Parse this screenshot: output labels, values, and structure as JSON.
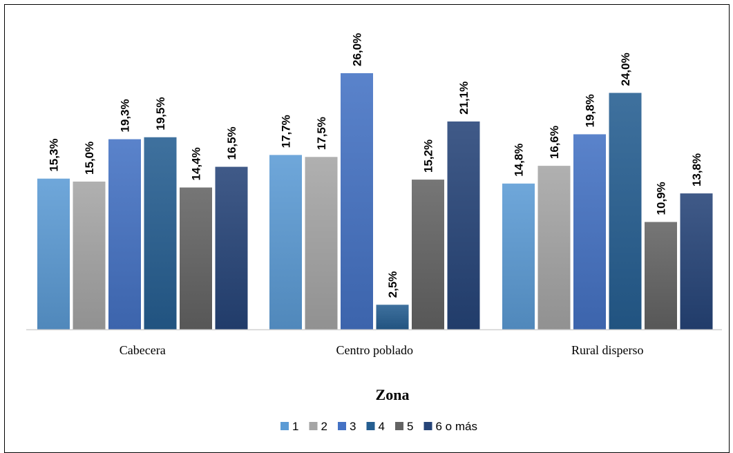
{
  "chart_data": {
    "type": "bar",
    "xlabel": "Zona",
    "categories": [
      "Cabecera",
      "Centro poblado",
      "Rural disperso"
    ],
    "ylim": [
      0,
      28
    ],
    "grid": false,
    "legend": "bottom",
    "series": [
      {
        "name": "1",
        "color": "#5b9bd5",
        "values": [
          15.3,
          17.7,
          14.8
        ],
        "labels": [
          "15,3%",
          "17,7%",
          "14,8%"
        ]
      },
      {
        "name": "2",
        "color": "#a5a5a5",
        "values": [
          15.0,
          17.5,
          16.6
        ],
        "labels": [
          "15,0%",
          "17,5%",
          "16,6%"
        ]
      },
      {
        "name": "3",
        "color": "#4472c4",
        "values": [
          19.3,
          26.0,
          19.8
        ],
        "labels": [
          "19,3%",
          "26,0%",
          "19,8%"
        ]
      },
      {
        "name": "4",
        "color": "#255e91",
        "values": [
          19.5,
          2.5,
          24.0
        ],
        "labels": [
          "19,5%",
          "2,5%",
          "24,0%"
        ]
      },
      {
        "name": "5",
        "color": "#636363",
        "values": [
          14.4,
          15.2,
          10.9
        ],
        "labels": [
          "14,4%",
          "15,2%",
          "10,9%"
        ]
      },
      {
        "name": "6 o más",
        "color": "#264478",
        "values": [
          16.5,
          21.1,
          13.8
        ],
        "labels": [
          "16,5%",
          "21,1%",
          "13,8%"
        ]
      }
    ]
  }
}
